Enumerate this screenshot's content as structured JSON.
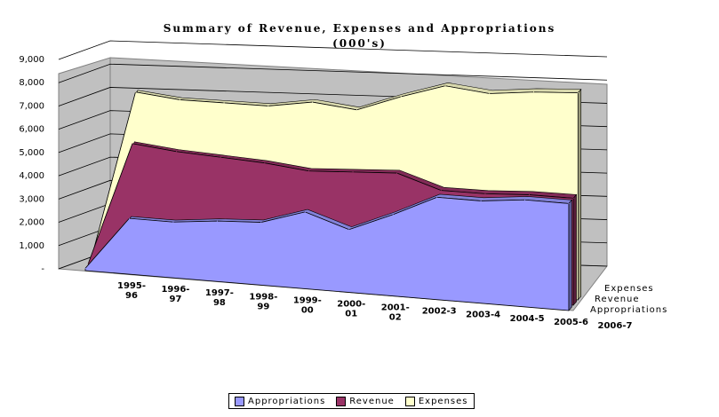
{
  "chart_data": {
    "type": "area",
    "title": "Summary of Revenue, Expenses and Appropriations",
    "subtitle": "(000's)",
    "categories": [
      "1995-96",
      "1996-97",
      "1997-98",
      "1998-99",
      "1999-00",
      "2000-01",
      "2001-02",
      "2002-3",
      "2003-4",
      "2004-5",
      "2005-6",
      "2006-7"
    ],
    "category_tick_lines": [
      [
        "1995-",
        "96"
      ],
      [
        "1996-",
        "97"
      ],
      [
        "1997-",
        "98"
      ],
      [
        "1998-",
        "99"
      ],
      [
        "1999-",
        "00"
      ],
      [
        "2000-",
        "01"
      ],
      [
        "2001-",
        "02"
      ],
      [
        "2002-3"
      ],
      [
        "2003-4"
      ],
      [
        "2004-5"
      ],
      [
        "2005-6"
      ],
      [
        "2006-7"
      ]
    ],
    "y_ticks": [
      "-",
      "1,000",
      "2,000",
      "3,000",
      "4,000",
      "5,000",
      "6,000",
      "7,000",
      "8,000",
      "9,000"
    ],
    "ylim": [
      0,
      9000
    ],
    "grid": true,
    "three_d": true,
    "legend_position": "bottom",
    "series": [
      {
        "name": "Appropriations",
        "color": "#9999ff",
        "values": [
          100,
          2400,
          2400,
          2600,
          2700,
          3300,
          2700,
          3500,
          4400,
          4400,
          4600,
          4600
        ]
      },
      {
        "name": "Revenue",
        "color": "#993366",
        "values": [
          200,
          5500,
          5300,
          5200,
          5100,
          4900,
          5000,
          5100,
          4500,
          4500,
          4600,
          4600
        ]
      },
      {
        "name": "Expenses",
        "color": "#ffffcc",
        "values": [
          300,
          7600,
          7400,
          7400,
          7400,
          7700,
          7500,
          8200,
          8800,
          8600,
          8800,
          8900
        ]
      }
    ]
  }
}
